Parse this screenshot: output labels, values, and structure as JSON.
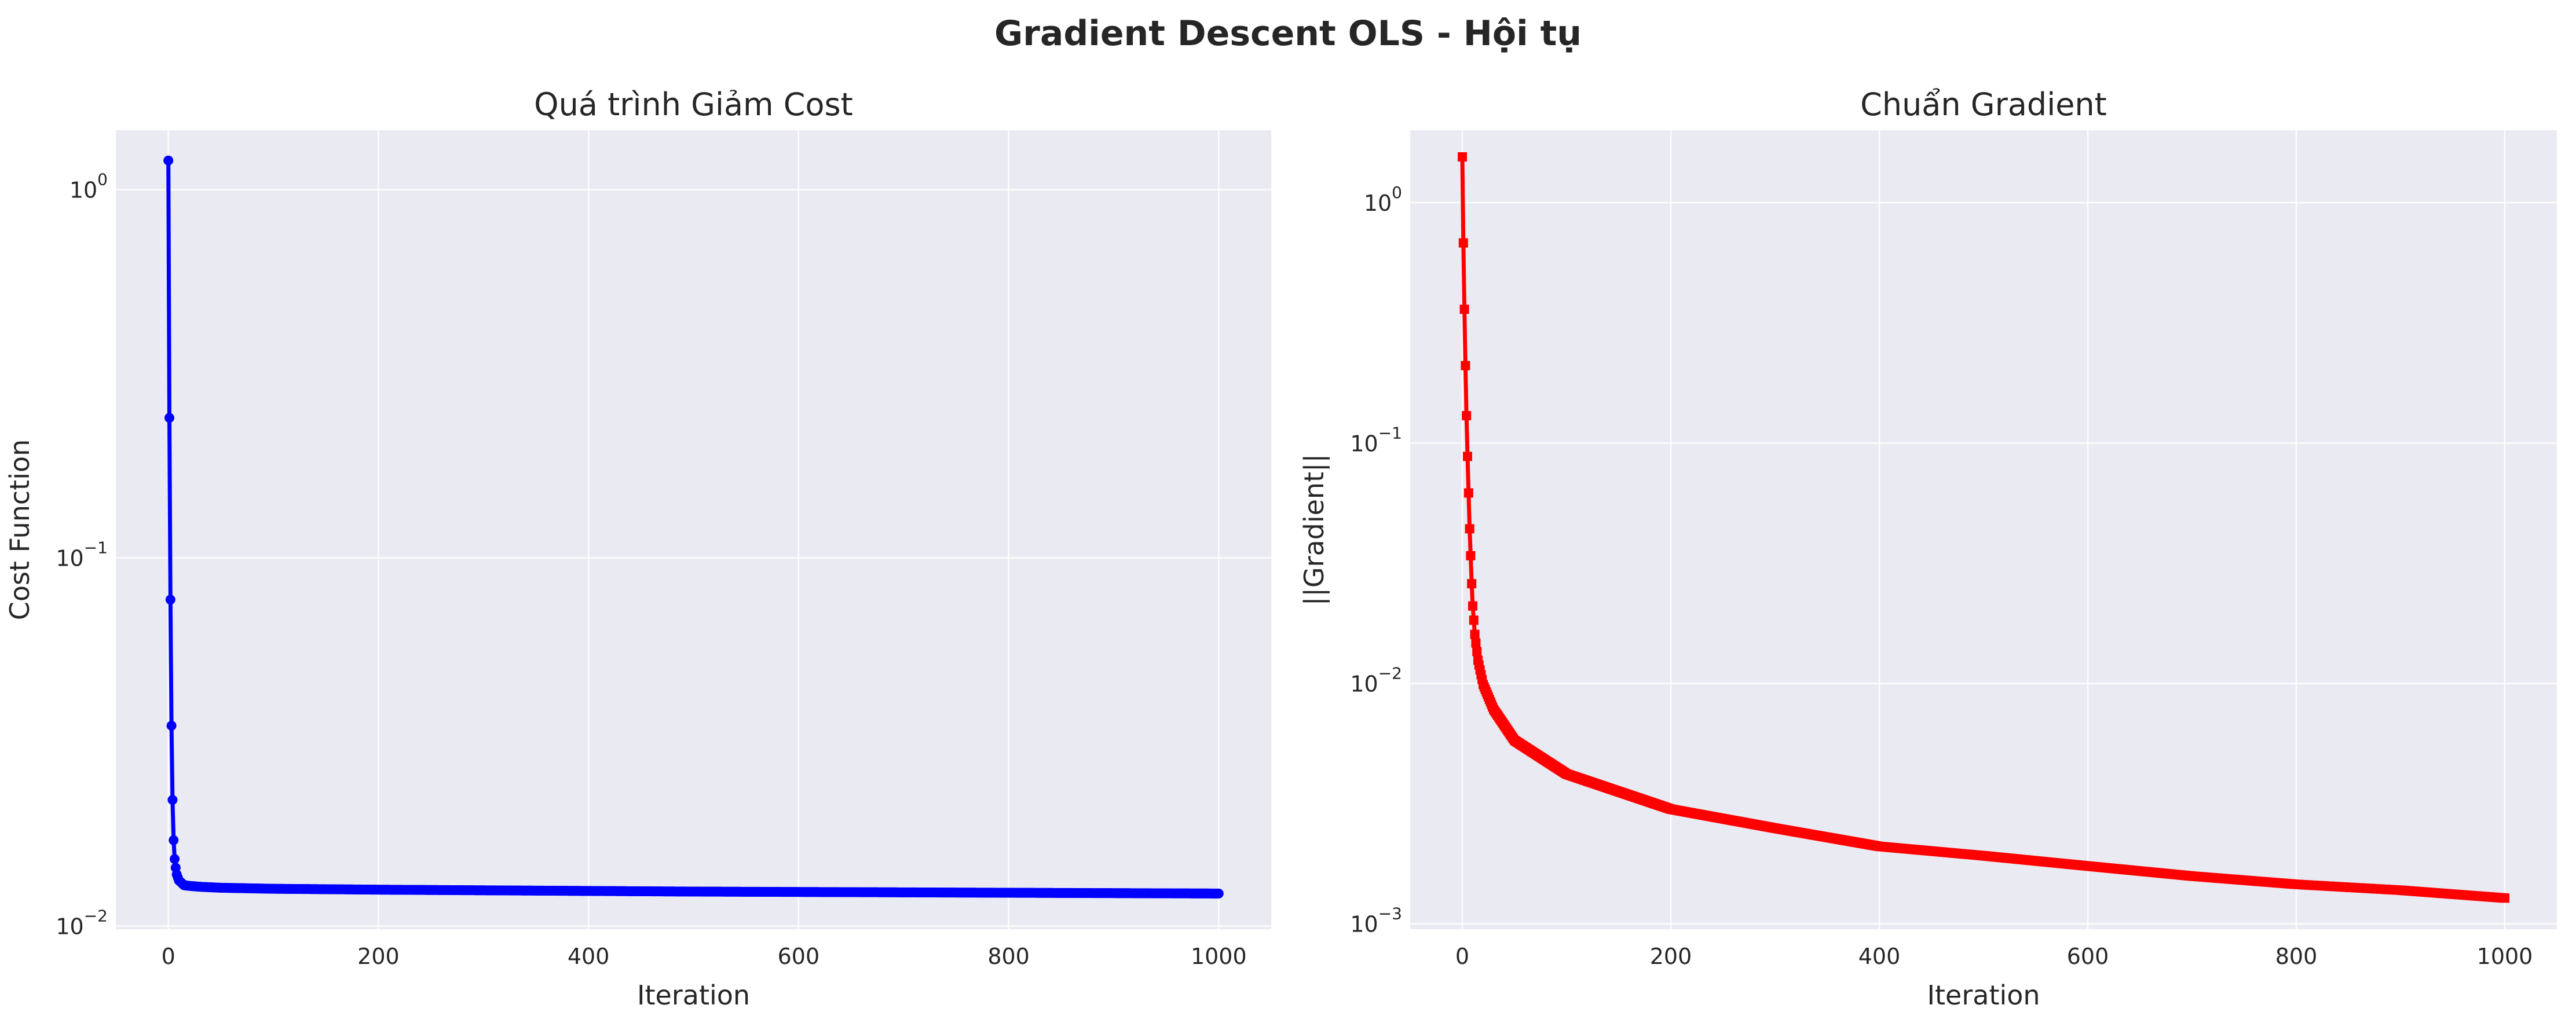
{
  "figure": {
    "title": "Gradient Descent OLS - Hội tụ",
    "background": "#ffffff",
    "axes_face": "#eaeaf2",
    "grid_color": "#ffffff"
  },
  "chart_data": [
    {
      "type": "line",
      "title": "Quá trình Giảm Cost",
      "xlabel": "Iteration",
      "ylabel": "Cost Function",
      "xlim": [
        -50,
        1050
      ],
      "ylim": [
        0.0098,
        1.45
      ],
      "yscale": "log",
      "grid": true,
      "xticks": [
        0,
        200,
        400,
        600,
        800,
        1000
      ],
      "xtick_labels": [
        "0",
        "200",
        "400",
        "600",
        "800",
        "1000"
      ],
      "yticks": [
        0.01,
        0.1,
        1
      ],
      "ytick_labels": [
        {
          "base": "10",
          "exp": "−2"
        },
        {
          "base": "10",
          "exp": "−1"
        },
        {
          "base": "10",
          "exp": "0"
        }
      ],
      "series": [
        {
          "color": "#0000ff",
          "marker": "circle",
          "n_iterations": 1001,
          "x": [
            0,
            1,
            2,
            3,
            4,
            5,
            6,
            7,
            8,
            10,
            15,
            20,
            30,
            50,
            100,
            200,
            300,
            400,
            500,
            600,
            700,
            800,
            900,
            1000
          ],
          "y": [
            1.2,
            0.24,
            0.077,
            0.035,
            0.022,
            0.0171,
            0.0152,
            0.0144,
            0.0138,
            0.0133,
            0.0129,
            0.01285,
            0.01278,
            0.0127,
            0.01262,
            0.01255,
            0.0125,
            0.01245,
            0.0124,
            0.01237,
            0.01234,
            0.01231,
            0.01228,
            0.01225
          ]
        }
      ]
    },
    {
      "type": "line",
      "title": "Chuẩn Gradient",
      "xlabel": "Iteration",
      "ylabel": "||Gradient||",
      "xlim": [
        -50,
        1050
      ],
      "ylim": [
        0.00095,
        2.0
      ],
      "yscale": "log",
      "grid": true,
      "xticks": [
        0,
        200,
        400,
        600,
        800,
        1000
      ],
      "xtick_labels": [
        "0",
        "200",
        "400",
        "600",
        "800",
        "1000"
      ],
      "yticks": [
        0.001,
        0.01,
        0.1,
        1
      ],
      "ytick_labels": [
        {
          "base": "10",
          "exp": "−3"
        },
        {
          "base": "10",
          "exp": "−2"
        },
        {
          "base": "10",
          "exp": "−1"
        },
        {
          "base": "10",
          "exp": "0"
        }
      ],
      "series": [
        {
          "color": "#ff0000",
          "marker": "square",
          "n_iterations": 1001,
          "x": [
            0,
            1,
            2,
            3,
            4,
            5,
            6,
            7,
            8,
            9,
            10,
            12,
            15,
            20,
            30,
            50,
            100,
            200,
            300,
            400,
            500,
            600,
            700,
            800,
            900,
            1000
          ],
          "y": [
            1.55,
            0.68,
            0.36,
            0.21,
            0.13,
            0.088,
            0.062,
            0.044,
            0.034,
            0.026,
            0.021,
            0.016,
            0.0125,
            0.0099,
            0.0078,
            0.0058,
            0.0042,
            0.003,
            0.0025,
            0.0021,
            0.00192,
            0.00174,
            0.00158,
            0.00146,
            0.00138,
            0.00128
          ]
        }
      ]
    }
  ]
}
